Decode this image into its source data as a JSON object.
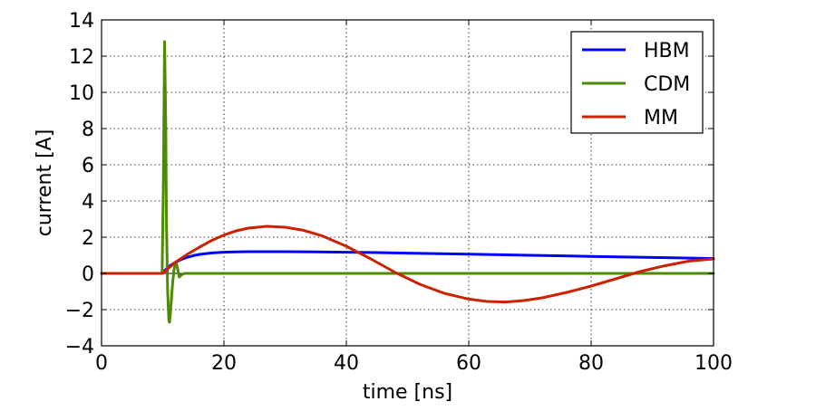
{
  "chart_data": {
    "type": "line",
    "xlabel": "time [ns]",
    "ylabel": "current [A]",
    "xlim": [
      0,
      100
    ],
    "ylim": [
      -4,
      14
    ],
    "xticks": [
      0,
      20,
      40,
      60,
      80,
      100
    ],
    "yticks": [
      -4,
      -2,
      0,
      2,
      4,
      6,
      8,
      10,
      12,
      14
    ],
    "xtick_labels": [
      "0",
      "20",
      "40",
      "60",
      "80",
      "100"
    ],
    "ytick_labels": [
      "−4",
      "−2",
      "0",
      "2",
      "4",
      "6",
      "8",
      "10",
      "12",
      "14"
    ],
    "grid": true,
    "legend_position": "top-right",
    "series": [
      {
        "name": "HBM",
        "color": "#0000ff",
        "x": [
          0,
          9.9,
          10.5,
          11,
          12,
          13,
          14,
          15,
          16,
          18,
          20,
          22,
          24,
          26,
          28,
          30,
          35,
          40,
          45,
          50,
          60,
          70,
          80,
          90,
          100
        ],
        "y": [
          0,
          0,
          0.22,
          0.38,
          0.6,
          0.77,
          0.89,
          0.98,
          1.05,
          1.13,
          1.17,
          1.19,
          1.2,
          1.2,
          1.2,
          1.2,
          1.19,
          1.17,
          1.15,
          1.12,
          1.06,
          1.0,
          0.94,
          0.88,
          0.82
        ]
      },
      {
        "name": "CDM",
        "color": "#4e8a04",
        "x": [
          0,
          9.9,
          10.1,
          10.3,
          10.5,
          10.6,
          10.8,
          11.0,
          11.1,
          11.2,
          11.4,
          11.6,
          11.8,
          12.0,
          12.2,
          12.4,
          12.7,
          13.0,
          13.5,
          14,
          100
        ],
        "y": [
          0,
          0,
          5.0,
          12.8,
          8.0,
          3.0,
          -1.0,
          -2.6,
          -2.7,
          -2.4,
          -1.5,
          -0.6,
          0.1,
          0.5,
          0.6,
          0.3,
          -0.2,
          -0.1,
          0,
          0,
          0
        ]
      },
      {
        "name": "MM",
        "color": "#cc2200",
        "x": [
          0,
          9.9,
          10,
          12,
          14,
          16,
          18,
          20,
          22,
          24,
          27,
          30,
          33,
          36,
          40,
          44,
          48,
          52,
          56,
          60,
          63,
          66,
          69,
          72,
          76,
          80,
          84,
          88,
          92,
          96,
          100
        ],
        "y": [
          0,
          0,
          0.0,
          0.6,
          1.05,
          1.45,
          1.82,
          2.12,
          2.35,
          2.5,
          2.6,
          2.55,
          2.38,
          2.08,
          1.5,
          0.8,
          0.05,
          -0.6,
          -1.1,
          -1.42,
          -1.55,
          -1.58,
          -1.5,
          -1.35,
          -1.05,
          -0.7,
          -0.3,
          0.1,
          0.42,
          0.68,
          0.8
        ]
      }
    ]
  }
}
